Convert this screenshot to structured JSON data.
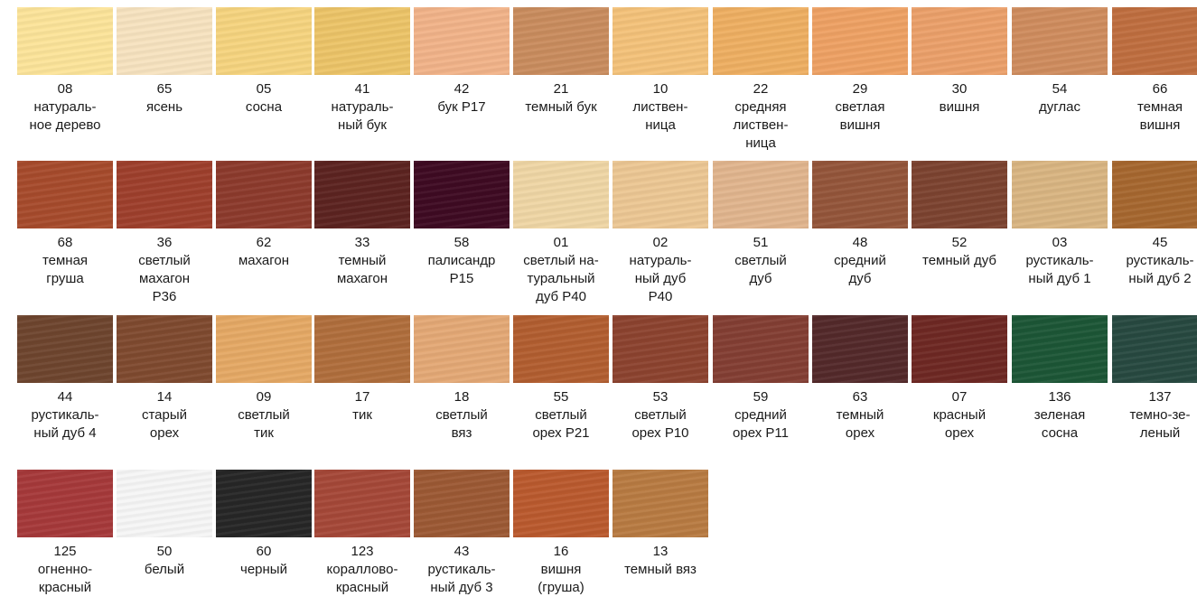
{
  "swatches": [
    {
      "code": "08",
      "name": "натураль-\nное дерево",
      "color": "#FCE49A"
    },
    {
      "code": "65",
      "name": "ясень",
      "color": "#F7E3C0"
    },
    {
      "code": "05",
      "name": "сосна",
      "color": "#F6D47F"
    },
    {
      "code": "41",
      "name": "натураль-\nный бук",
      "color": "#ECC468"
    },
    {
      "code": "42",
      "name": "бук Р17",
      "color": "#F1B389"
    },
    {
      "code": "21",
      "name": "темный бук",
      "color": "#C98C5E"
    },
    {
      "code": "10",
      "name": "листвен-\nница",
      "color": "#F4C27A"
    },
    {
      "code": "22",
      "name": "средняя\nлиствен-\nница",
      "color": "#EEAF62"
    },
    {
      "code": "29",
      "name": "светлая\nвишня",
      "color": "#EEA164"
    },
    {
      "code": "30",
      "name": "вишня",
      "color": "#EBA06A"
    },
    {
      "code": "54",
      "name": "дуглас",
      "color": "#CF8C5E"
    },
    {
      "code": "66",
      "name": "темная\nвишня",
      "color": "#BF6E3F"
    },
    {
      "code": "68",
      "name": "темная\nгруша",
      "color": "#A74B2C"
    },
    {
      "code": "36",
      "name": "светлый\nмахагон\nР36",
      "color": "#9E3F2C"
    },
    {
      "code": "62",
      "name": "махагон",
      "color": "#8C3A2C"
    },
    {
      "code": "33",
      "name": "темный\nмахагон",
      "color": "#5C2320"
    },
    {
      "code": "58",
      "name": "палисандр\nР15",
      "color": "#3E0A22"
    },
    {
      "code": "01",
      "name": "светлый на-\nтуральный\nдуб Р40",
      "color": "#EFD6A5"
    },
    {
      "code": "02",
      "name": "натураль-\nный дуб\nР40",
      "color": "#ECC794"
    },
    {
      "code": "51",
      "name": "светлый\nдуб",
      "color": "#E1B58E"
    },
    {
      "code": "48",
      "name": "средний\nдуб",
      "color": "#94553A"
    },
    {
      "code": "52",
      "name": "темный дуб",
      "color": "#7C4330"
    },
    {
      "code": "03",
      "name": "рустикаль-\nный дуб 1",
      "color": "#D9B582"
    },
    {
      "code": "45",
      "name": "рустикаль-\nный дуб 2",
      "color": "#A6672F"
    },
    {
      "code": "44",
      "name": "рустикаль-\nный дуб 4",
      "color": "#6E452E"
    },
    {
      "code": "14",
      "name": "старый\nорех",
      "color": "#7F4A2F"
    },
    {
      "code": "09",
      "name": "светлый\nтик",
      "color": "#E5A965"
    },
    {
      "code": "17",
      "name": "тик",
      "color": "#B06E3C"
    },
    {
      "code": "18",
      "name": "светлый\nвяз",
      "color": "#E4A976"
    },
    {
      "code": "55",
      "name": "светлый\nорех Р21",
      "color": "#B25E30"
    },
    {
      "code": "53",
      "name": "светлый\nорех Р10",
      "color": "#8C432F"
    },
    {
      "code": "59",
      "name": "средний\nорех Р11",
      "color": "#833E33"
    },
    {
      "code": "63",
      "name": "темный\nорех",
      "color": "#53292A"
    },
    {
      "code": "07",
      "name": "красный\nорех",
      "color": "#6E2823"
    },
    {
      "code": "136",
      "name": "зеленая\nсосна",
      "color": "#1C5636"
    },
    {
      "code": "137",
      "name": "темно-зе-\nленый",
      "color": "#274940"
    },
    {
      "code": "125",
      "name": "огненно-\nкрасный",
      "color": "#A6393A"
    },
    {
      "code": "50",
      "name": "белый",
      "color": "#F6F6F6"
    },
    {
      "code": "60",
      "name": "черный",
      "color": "#262626"
    },
    {
      "code": "123",
      "name": "кораллово-\nкрасный",
      "color": "#A54838"
    },
    {
      "code": "43",
      "name": "рустикаль-\nный дуб 3",
      "color": "#9C5934"
    },
    {
      "code": "16",
      "name": "вишня\n(груша)",
      "color": "#BA5A2E"
    },
    {
      "code": "13",
      "name": "темный вяз",
      "color": "#B87B42"
    }
  ]
}
